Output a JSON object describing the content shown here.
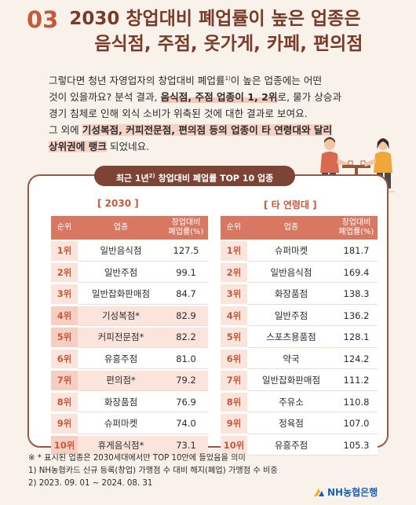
{
  "heading": {
    "number": "03",
    "line1": "2030 창업대비 폐업률이 높은 업종은",
    "line2": "음식점, 주점, 옷가게, 카페, 편의점"
  },
  "intro": {
    "l1": "그렇다면 청년 자영업자의 창업대비 폐업률",
    "l1_sup": "1)",
    "l1_end": "이 높은 업종에는 어떤",
    "l2a": "것이 있을까요? 분석 결과, ",
    "l2_hl": "음식점, 주점 업종이 1, 2위",
    "l2b": "로, 물가 상승과",
    "l3": "경기 침체로 인해 외식 소비가 위축된 것에 대한 결과로 보여요.",
    "l4a": "그 외에 ",
    "l4_hl": "기성복점, 커피전문점, 편의점 등의 업종이 타 연령대와 달리",
    "l5_hl": "상위권에 랭크",
    "l5b": " 되었네요."
  },
  "panel": {
    "title": "최근 1년",
    "title_sup": "2)",
    "title_end": " 창업대비 폐업률 TOP 10 업종",
    "left_label": "[ 2030 ]",
    "right_label": "[ 타 연령대 ]",
    "col_rank": "순위",
    "col_name": "업종",
    "col_value_1": "창업대비",
    "col_value_2": "폐업률(%)",
    "left_rows": [
      {
        "rank": "1위",
        "name": "일반음식점",
        "value": "127.5",
        "highlight": false
      },
      {
        "rank": "2위",
        "name": "일반주점",
        "value": "99.1",
        "highlight": false
      },
      {
        "rank": "3위",
        "name": "일반잡화판매점",
        "value": "84.7",
        "highlight": false
      },
      {
        "rank": "4위",
        "name": "기성복점*",
        "value": "82.9",
        "highlight": true
      },
      {
        "rank": "5위",
        "name": "커피전문점*",
        "value": "82.2",
        "highlight": true
      },
      {
        "rank": "6위",
        "name": "유흥주점",
        "value": "81.0",
        "highlight": false
      },
      {
        "rank": "7위",
        "name": "편의점*",
        "value": "79.2",
        "highlight": true
      },
      {
        "rank": "8위",
        "name": "화장품점",
        "value": "76.9",
        "highlight": false
      },
      {
        "rank": "9위",
        "name": "슈퍼마켓",
        "value": "74.0",
        "highlight": false
      },
      {
        "rank": "10위",
        "name": "휴게음식점*",
        "value": "73.1",
        "highlight": true
      }
    ],
    "right_rows": [
      {
        "rank": "1위",
        "name": "슈퍼마켓",
        "value": "181.7"
      },
      {
        "rank": "2위",
        "name": "일반음식점",
        "value": "169.4"
      },
      {
        "rank": "3위",
        "name": "화장품점",
        "value": "138.3"
      },
      {
        "rank": "4위",
        "name": "일반주점",
        "value": "136.2"
      },
      {
        "rank": "5위",
        "name": "스포츠용품점",
        "value": "128.1"
      },
      {
        "rank": "6위",
        "name": "약국",
        "value": "124.2"
      },
      {
        "rank": "7위",
        "name": "일반잡화판매점",
        "value": "111.2"
      },
      {
        "rank": "8위",
        "name": "주유소",
        "value": "110.8"
      },
      {
        "rank": "9위",
        "name": "정육점",
        "value": "107.0"
      },
      {
        "rank": "10위",
        "name": "유흥주점",
        "value": "105.3"
      }
    ]
  },
  "notes": {
    "n1": "※ * 표시된 업종은 2030세대에서만 TOP 10안에 들었음을 의미",
    "n2": "1) NH농협카드 신규 등록(창업) 가맹점 수 대비 해지(폐업) 가맹점 수 비중",
    "n3": "2) 2023. 09. 01 ~ 2024. 08. 31"
  },
  "brand": {
    "name": "NH농협은행"
  },
  "colors": {
    "accent": "#c7583b",
    "dark": "#7d4435",
    "header_cell": "#d97862",
    "highlight": "#fbe4dc",
    "brand": "#1a5fb4"
  }
}
